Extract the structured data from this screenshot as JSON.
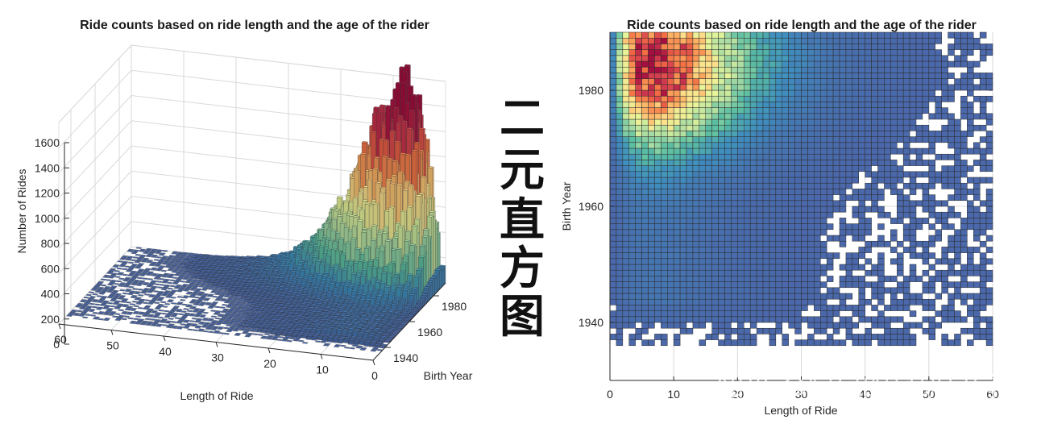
{
  "side_text": [
    "二",
    "元",
    "直",
    "方",
    "图"
  ],
  "watermark": "知乎 @阿昆的科研日常",
  "chart_data": [
    {
      "type": "bar3d",
      "title": "Ride counts based on ride length and the age of the rider",
      "xlabel": "Length of Ride",
      "ylabel": "Birth Year",
      "zlabel": "Number of Rides",
      "xlim": [
        0,
        60
      ],
      "ylim": [
        1930,
        1990
      ],
      "zlim": [
        0,
        1600
      ],
      "xticks": [
        "0",
        "10",
        "20",
        "30",
        "40",
        "50",
        "60"
      ],
      "yticks": [
        "1940",
        "1960",
        "1980"
      ],
      "zticks": [
        "0",
        "200",
        "400",
        "600",
        "800",
        "1000",
        "1200",
        "1400",
        "1600"
      ],
      "peak": {
        "x": 6,
        "y": 1984,
        "z": 1500
      },
      "colormap": [
        "#4a67aa",
        "#3f8fbf",
        "#5bbfa2",
        "#a6dba4",
        "#e6f59a",
        "#fee08b",
        "#fdae61",
        "#f46d43",
        "#d53e4f",
        "#a50f3f"
      ]
    },
    {
      "type": "heatmap",
      "title": "Ride counts based on ride length and the age of the rider",
      "xlabel": "Length of Ride",
      "ylabel": "Birth Year",
      "xlim": [
        0,
        60
      ],
      "ylim": [
        1930,
        1990
      ],
      "xticks": [
        "0",
        "10",
        "20",
        "30",
        "40",
        "50",
        "60"
      ],
      "yticks": [
        "1940",
        "1960",
        "1980"
      ],
      "bin_width_x": 1,
      "bin_width_y": 1,
      "peak": {
        "x": 6,
        "y": 1984,
        "z": 1500
      }
    }
  ]
}
